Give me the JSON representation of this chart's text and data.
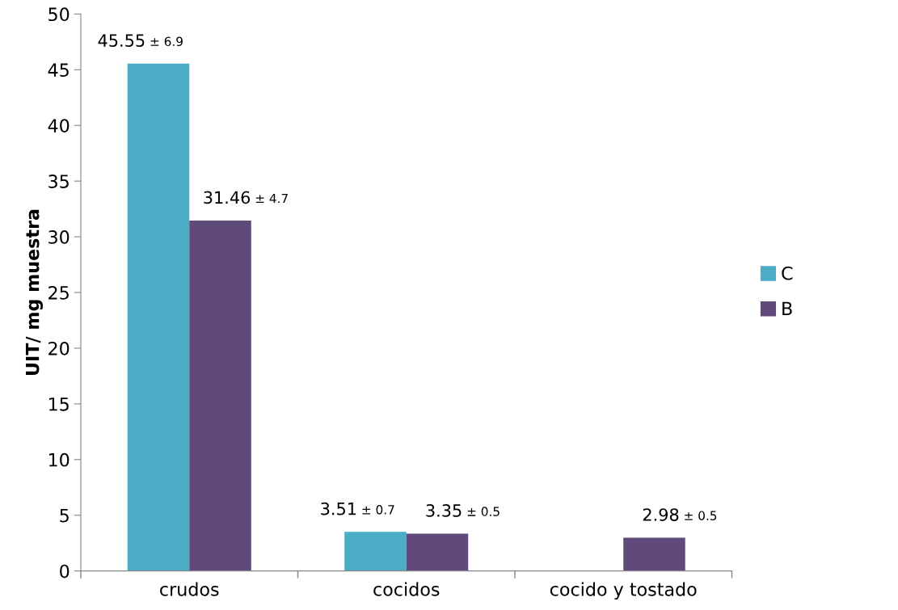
{
  "chart_data": {
    "type": "bar",
    "ylabel": "UIT/ mg muestra",
    "categories": [
      "crudos",
      "cocidos",
      "cocido y tostado"
    ],
    "series": [
      {
        "name": "C",
        "color": "#4bacc6",
        "values": [
          45.55,
          3.51,
          null
        ],
        "value_labels": [
          "45.55 ± 6.9",
          "3.51 ± 0.7",
          null
        ]
      },
      {
        "name": "B",
        "color": "#604a7b",
        "values": [
          31.46,
          3.35,
          2.98
        ],
        "value_labels": [
          "31.46 ± 4.7",
          "3.35 ± 0.5",
          "2.98 ± 0.5"
        ]
      }
    ],
    "ylim": [
      0,
      50
    ],
    "yticks": [
      0,
      5,
      10,
      15,
      20,
      25,
      30,
      35,
      40,
      45,
      50
    ],
    "grid": false,
    "legend": "right"
  }
}
